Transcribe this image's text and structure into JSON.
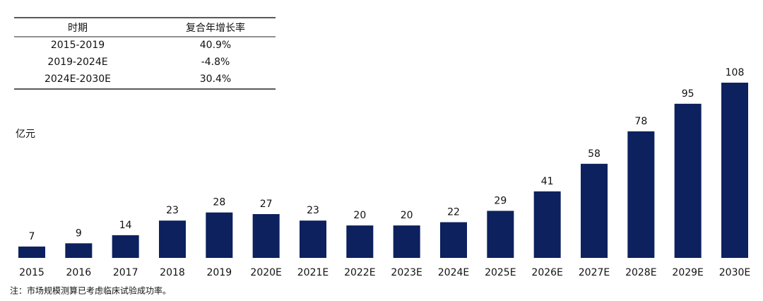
{
  "chart_data": {
    "type": "bar",
    "categories": [
      "2015",
      "2016",
      "2017",
      "2018",
      "2019",
      "2020E",
      "2021E",
      "2022E",
      "2023E",
      "2024E",
      "2025E",
      "2026E",
      "2027E",
      "2028E",
      "2029E",
      "2030E"
    ],
    "values": [
      7,
      9,
      14,
      23,
      28,
      27,
      23,
      20,
      20,
      22,
      29,
      41,
      58,
      78,
      95,
      108
    ],
    "color": "#0c215e",
    "unit_label": "亿元",
    "note": "注：市场规模测算已考虑临床试验成功率。"
  },
  "cagr_table": {
    "headers": [
      "时期",
      "复合年增长率"
    ],
    "rows": [
      [
        "2015-2019",
        "40.9%"
      ],
      [
        "2019-2024E",
        "-4.8%"
      ],
      [
        "2024E-2030E",
        "30.4%"
      ]
    ]
  }
}
